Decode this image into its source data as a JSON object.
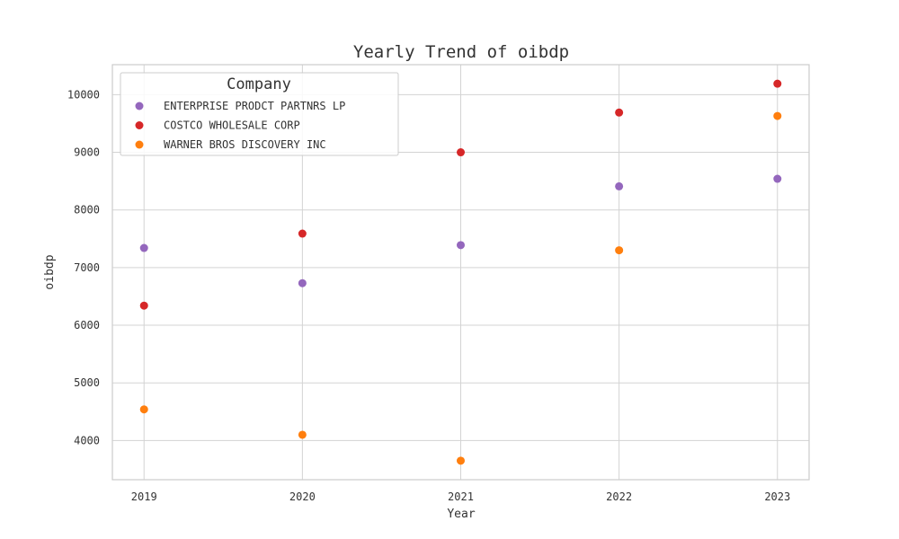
{
  "chart_data": {
    "type": "scatter",
    "title": "Yearly Trend of oibdp",
    "xlabel": "Year",
    "ylabel": "oibdp",
    "x": [
      2019,
      2020,
      2021,
      2022,
      2023
    ],
    "x_tick_labels": [
      "2019",
      "2020",
      "2021",
      "2022",
      "2023"
    ],
    "xlim": [
      2018.8,
      2023.2
    ],
    "ylim": [
      3320,
      10520
    ],
    "y_ticks": [
      4000,
      5000,
      6000,
      7000,
      8000,
      9000,
      10000
    ],
    "grid": true,
    "legend": {
      "title": "Company",
      "position": "top-left"
    },
    "series": [
      {
        "name": "ENTERPRISE PRODCT PARTNRS LP",
        "color": "#9467bd",
        "values": [
          7340,
          6730,
          7390,
          8410,
          8540
        ]
      },
      {
        "name": "COSTCO WHOLESALE CORP",
        "color": "#d62728",
        "values": [
          6340,
          7590,
          9000,
          9690,
          10190
        ]
      },
      {
        "name": "WARNER BROS DISCOVERY INC",
        "color": "#ff7f0e",
        "values": [
          4540,
          4100,
          3650,
          7300,
          9630
        ]
      }
    ]
  }
}
